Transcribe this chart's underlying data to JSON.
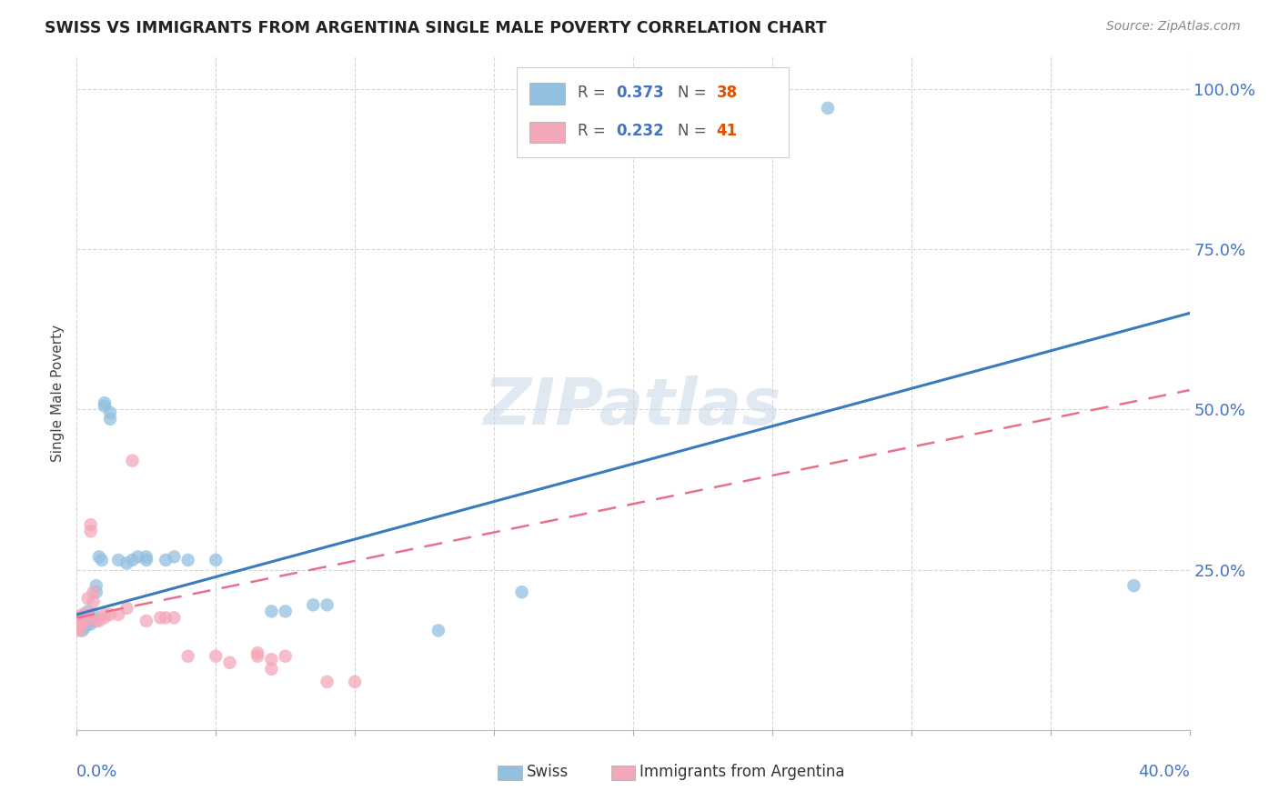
{
  "title": "SWISS VS IMMIGRANTS FROM ARGENTINA SINGLE MALE POVERTY CORRELATION CHART",
  "source": "Source: ZipAtlas.com",
  "ylabel": "Single Male Poverty",
  "watermark": "ZIPatlas",
  "swiss_color": "#92c0e0",
  "arg_color": "#f4a7b9",
  "swiss_line_color": "#3a7bbf",
  "arg_line_color": "#e8708a",
  "swiss_scatter": [
    [
      0.001,
      0.17
    ],
    [
      0.002,
      0.155
    ],
    [
      0.002,
      0.165
    ],
    [
      0.003,
      0.16
    ],
    [
      0.003,
      0.175
    ],
    [
      0.004,
      0.17
    ],
    [
      0.004,
      0.185
    ],
    [
      0.005,
      0.165
    ],
    [
      0.005,
      0.175
    ],
    [
      0.006,
      0.17
    ],
    [
      0.006,
      0.18
    ],
    [
      0.007,
      0.215
    ],
    [
      0.007,
      0.225
    ],
    [
      0.008,
      0.27
    ],
    [
      0.009,
      0.265
    ],
    [
      0.01,
      0.505
    ],
    [
      0.01,
      0.51
    ],
    [
      0.012,
      0.485
    ],
    [
      0.012,
      0.495
    ],
    [
      0.015,
      0.265
    ],
    [
      0.018,
      0.26
    ],
    [
      0.02,
      0.265
    ],
    [
      0.022,
      0.27
    ],
    [
      0.025,
      0.27
    ],
    [
      0.025,
      0.265
    ],
    [
      0.032,
      0.265
    ],
    [
      0.035,
      0.27
    ],
    [
      0.04,
      0.265
    ],
    [
      0.05,
      0.265
    ],
    [
      0.07,
      0.185
    ],
    [
      0.075,
      0.185
    ],
    [
      0.085,
      0.195
    ],
    [
      0.09,
      0.195
    ],
    [
      0.13,
      0.155
    ],
    [
      0.16,
      0.215
    ],
    [
      0.175,
      1.0
    ],
    [
      0.24,
      1.0
    ],
    [
      0.27,
      0.97
    ],
    [
      0.38,
      0.225
    ]
  ],
  "arg_scatter": [
    [
      0.0,
      0.16
    ],
    [
      0.0,
      0.165
    ],
    [
      0.001,
      0.155
    ],
    [
      0.001,
      0.165
    ],
    [
      0.001,
      0.17
    ],
    [
      0.001,
      0.175
    ],
    [
      0.002,
      0.165
    ],
    [
      0.002,
      0.17
    ],
    [
      0.002,
      0.175
    ],
    [
      0.002,
      0.18
    ],
    [
      0.003,
      0.17
    ],
    [
      0.003,
      0.175
    ],
    [
      0.003,
      0.18
    ],
    [
      0.004,
      0.18
    ],
    [
      0.004,
      0.205
    ],
    [
      0.005,
      0.31
    ],
    [
      0.005,
      0.32
    ],
    [
      0.006,
      0.2
    ],
    [
      0.006,
      0.215
    ],
    [
      0.007,
      0.17
    ],
    [
      0.008,
      0.17
    ],
    [
      0.01,
      0.175
    ],
    [
      0.01,
      0.18
    ],
    [
      0.012,
      0.18
    ],
    [
      0.015,
      0.18
    ],
    [
      0.018,
      0.19
    ],
    [
      0.02,
      0.42
    ],
    [
      0.025,
      0.17
    ],
    [
      0.03,
      0.175
    ],
    [
      0.032,
      0.175
    ],
    [
      0.035,
      0.175
    ],
    [
      0.04,
      0.115
    ],
    [
      0.05,
      0.115
    ],
    [
      0.055,
      0.105
    ],
    [
      0.065,
      0.115
    ],
    [
      0.065,
      0.12
    ],
    [
      0.07,
      0.095
    ],
    [
      0.07,
      0.11
    ],
    [
      0.075,
      0.115
    ],
    [
      0.09,
      0.075
    ],
    [
      0.1,
      0.075
    ]
  ],
  "xlim": [
    0.0,
    0.4
  ],
  "ylim": [
    0.0,
    1.05
  ],
  "ytick_vals": [
    0.25,
    0.5,
    0.75,
    1.0
  ],
  "ytick_labels": [
    "25.0%",
    "50.0%",
    "75.0%",
    "100.0%"
  ],
  "xtick_vals": [
    0.0,
    0.05,
    0.1,
    0.15,
    0.2,
    0.25,
    0.3,
    0.35,
    0.4
  ],
  "background_color": "#ffffff",
  "grid_color": "#d5d5d5",
  "tick_color": "#4472c4",
  "r_color": "#4472c4",
  "n_color": "#e05000"
}
